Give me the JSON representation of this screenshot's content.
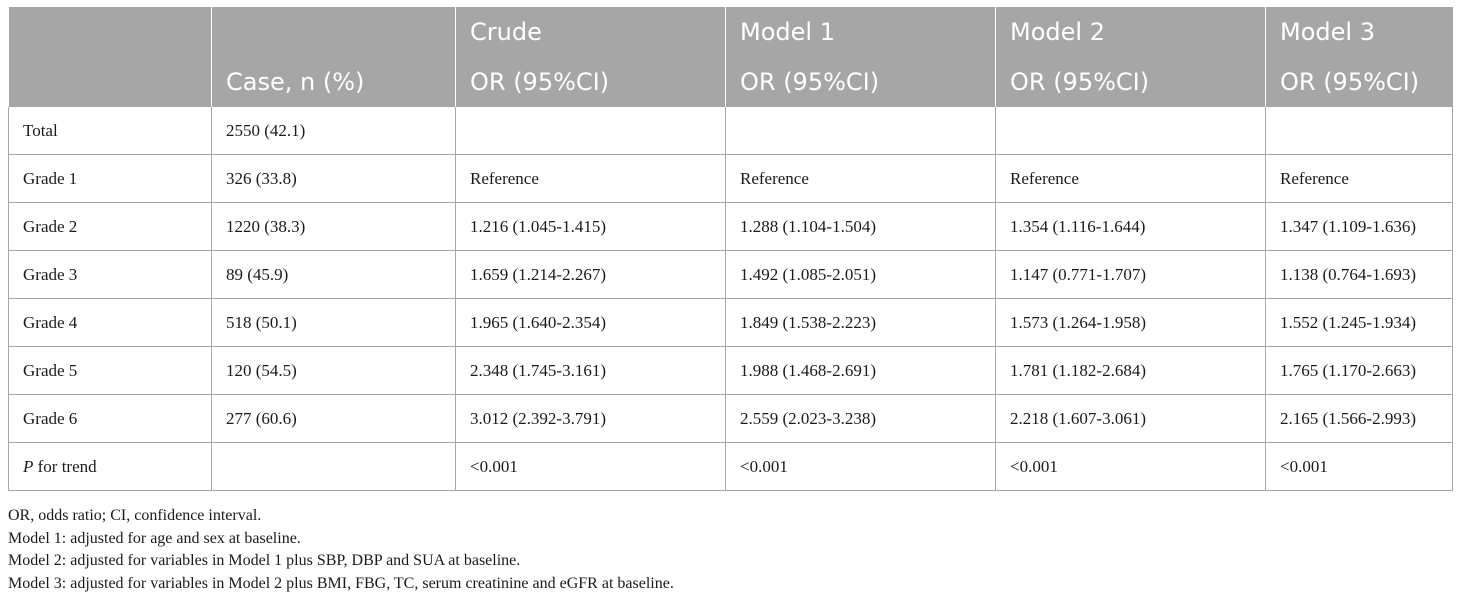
{
  "header": {
    "row1": [
      "",
      "",
      "Crude",
      "Model 1",
      "Model 2",
      "Model 3"
    ],
    "row2": [
      "",
      "Case, n (%)",
      "OR (95%CI)",
      "OR (95%CI)",
      "OR (95%CI)",
      "OR (95%CI)"
    ]
  },
  "rows": [
    {
      "label": "Total",
      "case": "2550 (42.1)",
      "crude": "",
      "m1": "",
      "m2": "",
      "m3": ""
    },
    {
      "label": "Grade 1",
      "case": "326 (33.8)",
      "crude": "Reference",
      "m1": "Reference",
      "m2": "Reference",
      "m3": "Reference"
    },
    {
      "label": "Grade 2",
      "case": "1220 (38.3)",
      "crude": "1.216 (1.045-1.415)",
      "m1": "1.288 (1.104-1.504)",
      "m2": "1.354 (1.116-1.644)",
      "m3": "1.347 (1.109-1.636)"
    },
    {
      "label": "Grade 3",
      "case": "89 (45.9)",
      "crude": "1.659 (1.214-2.267)",
      "m1": "1.492 (1.085-2.051)",
      "m2": "1.147 (0.771-1.707)",
      "m3": "1.138 (0.764-1.693)"
    },
    {
      "label": "Grade 4",
      "case": "518 (50.1)",
      "crude": "1.965 (1.640-2.354)",
      "m1": "1.849 (1.538-2.223)",
      "m2": "1.573 (1.264-1.958)",
      "m3": "1.552 (1.245-1.934)"
    },
    {
      "label": "Grade 5",
      "case": "120 (54.5)",
      "crude": "2.348 (1.745-3.161)",
      "m1": "1.988 (1.468-2.691)",
      "m2": "1.781 (1.182-2.684)",
      "m3": "1.765 (1.170-2.663)"
    },
    {
      "label": "Grade 6",
      "case": "277 (60.6)",
      "crude": "3.012 (2.392-3.791)",
      "m1": "2.559 (2.023-3.238)",
      "m2": "2.218 (1.607-3.061)",
      "m3": "2.165 (1.566-2.993)"
    }
  ],
  "trend_row": {
    "label_italic": "P",
    "label_rest": " for trend",
    "case": "",
    "crude": "<0.001",
    "m1": "<0.001",
    "m2": "<0.001",
    "m3": "<0.001"
  },
  "notes": [
    "OR, odds ratio; CI, confidence interval.",
    "Model 1: adjusted for age and sex at baseline.",
    "Model 2: adjusted for variables in Model 1 plus SBP, DBP and SUA at baseline.",
    "Model 3: adjusted for variables in Model 2 plus BMI, FBG, TC, serum creatinine and eGFR at baseline."
  ]
}
